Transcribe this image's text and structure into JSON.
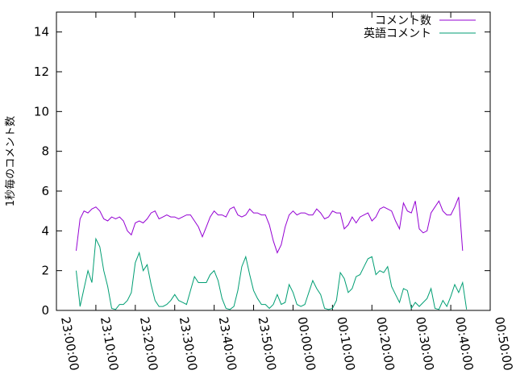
{
  "chart_data": {
    "type": "line",
    "title": "",
    "xlabel": "",
    "ylabel": "1秒毎のコメント数",
    "xlim": [
      "23:00:00",
      "00:50:00"
    ],
    "ylim": [
      0,
      15
    ],
    "x_ticks": [
      "23:00:00",
      "23:10:00",
      "23:20:00",
      "23:30:00",
      "23:40:00",
      "23:50:00",
      "00:00:00",
      "00:10:00",
      "00:20:00",
      "00:30:00",
      "00:40:00",
      "00:50:00"
    ],
    "y_ticks": [
      0,
      2,
      4,
      6,
      8,
      10,
      12,
      14
    ],
    "grid": false,
    "legend": "top-right",
    "series": [
      {
        "name": "コメント数",
        "color": "#9400d3",
        "points": [
          [
            "23:05:00",
            3.0
          ],
          [
            "23:06:00",
            4.6
          ],
          [
            "23:07:00",
            5.0
          ],
          [
            "23:08:00",
            4.9
          ],
          [
            "23:09:00",
            5.1
          ],
          [
            "23:10:00",
            5.2
          ],
          [
            "23:11:00",
            5.0
          ],
          [
            "23:12:00",
            4.6
          ],
          [
            "23:13:00",
            4.5
          ],
          [
            "23:14:00",
            4.7
          ],
          [
            "23:15:00",
            4.6
          ],
          [
            "23:16:00",
            4.7
          ],
          [
            "23:17:00",
            4.5
          ],
          [
            "23:18:00",
            4.0
          ],
          [
            "23:19:00",
            3.8
          ],
          [
            "23:20:00",
            4.4
          ],
          [
            "23:21:00",
            4.5
          ],
          [
            "23:22:00",
            4.4
          ],
          [
            "23:23:00",
            4.6
          ],
          [
            "23:24:00",
            4.9
          ],
          [
            "23:25:00",
            5.0
          ],
          [
            "23:26:00",
            4.6
          ],
          [
            "23:27:00",
            4.7
          ],
          [
            "23:28:00",
            4.8
          ],
          [
            "23:29:00",
            4.7
          ],
          [
            "23:30:00",
            4.7
          ],
          [
            "23:31:00",
            4.6
          ],
          [
            "23:32:00",
            4.7
          ],
          [
            "23:33:00",
            4.8
          ],
          [
            "23:34:00",
            4.8
          ],
          [
            "23:35:00",
            4.5
          ],
          [
            "23:36:00",
            4.2
          ],
          [
            "23:37:00",
            3.7
          ],
          [
            "23:38:00",
            4.2
          ],
          [
            "23:39:00",
            4.7
          ],
          [
            "23:40:00",
            5.0
          ],
          [
            "23:41:00",
            4.8
          ],
          [
            "23:42:00",
            4.8
          ],
          [
            "23:43:00",
            4.7
          ],
          [
            "23:44:00",
            5.1
          ],
          [
            "23:45:00",
            5.2
          ],
          [
            "23:46:00",
            4.8
          ],
          [
            "23:47:00",
            4.7
          ],
          [
            "23:48:00",
            4.8
          ],
          [
            "23:49:00",
            5.1
          ],
          [
            "23:50:00",
            4.9
          ],
          [
            "23:51:00",
            4.9
          ],
          [
            "23:52:00",
            4.8
          ],
          [
            "23:53:00",
            4.8
          ],
          [
            "23:54:00",
            4.3
          ],
          [
            "23:55:00",
            3.5
          ],
          [
            "23:56:00",
            2.9
          ],
          [
            "23:57:00",
            3.3
          ],
          [
            "23:58:00",
            4.2
          ],
          [
            "23:59:00",
            4.8
          ],
          [
            "00:00:00",
            5.0
          ],
          [
            "00:01:00",
            4.8
          ],
          [
            "00:02:00",
            4.9
          ],
          [
            "00:03:00",
            4.9
          ],
          [
            "00:04:00",
            4.8
          ],
          [
            "00:05:00",
            4.8
          ],
          [
            "00:06:00",
            5.1
          ],
          [
            "00:07:00",
            4.9
          ],
          [
            "00:08:00",
            4.6
          ],
          [
            "00:09:00",
            4.7
          ],
          [
            "00:10:00",
            5.0
          ],
          [
            "00:11:00",
            4.9
          ],
          [
            "00:12:00",
            4.9
          ],
          [
            "00:13:00",
            4.1
          ],
          [
            "00:14:00",
            4.3
          ],
          [
            "00:15:00",
            4.7
          ],
          [
            "00:16:00",
            4.4
          ],
          [
            "00:17:00",
            4.7
          ],
          [
            "00:18:00",
            4.8
          ],
          [
            "00:19:00",
            4.9
          ],
          [
            "00:20:00",
            4.5
          ],
          [
            "00:21:00",
            4.7
          ],
          [
            "00:22:00",
            5.1
          ],
          [
            "00:23:00",
            5.2
          ],
          [
            "00:24:00",
            5.1
          ],
          [
            "00:25:00",
            5.0
          ],
          [
            "00:26:00",
            4.5
          ],
          [
            "00:27:00",
            4.1
          ],
          [
            "00:28:00",
            5.4
          ],
          [
            "00:29:00",
            5.0
          ],
          [
            "00:30:00",
            4.9
          ],
          [
            "00:31:00",
            5.5
          ],
          [
            "00:32:00",
            4.1
          ],
          [
            "00:33:00",
            3.9
          ],
          [
            "00:34:00",
            4.0
          ],
          [
            "00:35:00",
            4.9
          ],
          [
            "00:36:00",
            5.2
          ],
          [
            "00:37:00",
            5.5
          ],
          [
            "00:38:00",
            5.0
          ],
          [
            "00:39:00",
            4.8
          ],
          [
            "00:40:00",
            4.8
          ],
          [
            "00:41:00",
            5.2
          ],
          [
            "00:42:00",
            5.7
          ],
          [
            "00:43:00",
            3.0
          ]
        ]
      },
      {
        "name": "英語コメント",
        "color": "#009e73",
        "points": [
          [
            "23:05:00",
            2.0
          ],
          [
            "23:06:00",
            0.2
          ],
          [
            "23:07:00",
            1.1
          ],
          [
            "23:08:00",
            2.0
          ],
          [
            "23:09:00",
            1.4
          ],
          [
            "23:10:00",
            3.6
          ],
          [
            "23:11:00",
            3.2
          ],
          [
            "23:12:00",
            2.0
          ],
          [
            "23:13:00",
            1.2
          ],
          [
            "23:14:00",
            0.1
          ],
          [
            "23:15:00",
            0.05
          ],
          [
            "23:16:00",
            0.3
          ],
          [
            "23:17:00",
            0.3
          ],
          [
            "23:18:00",
            0.5
          ],
          [
            "23:19:00",
            0.9
          ],
          [
            "23:20:00",
            2.4
          ],
          [
            "23:21:00",
            2.9
          ],
          [
            "23:22:00",
            2.0
          ],
          [
            "23:23:00",
            2.3
          ],
          [
            "23:24:00",
            1.3
          ],
          [
            "23:25:00",
            0.5
          ],
          [
            "23:26:00",
            0.2
          ],
          [
            "23:27:00",
            0.2
          ],
          [
            "23:28:00",
            0.3
          ],
          [
            "23:29:00",
            0.5
          ],
          [
            "23:30:00",
            0.8
          ],
          [
            "23:31:00",
            0.5
          ],
          [
            "23:32:00",
            0.4
          ],
          [
            "23:33:00",
            0.3
          ],
          [
            "23:34:00",
            1.0
          ],
          [
            "23:35:00",
            1.7
          ],
          [
            "23:36:00",
            1.4
          ],
          [
            "23:37:00",
            1.4
          ],
          [
            "23:38:00",
            1.4
          ],
          [
            "23:39:00",
            1.8
          ],
          [
            "23:40:00",
            2.0
          ],
          [
            "23:41:00",
            1.5
          ],
          [
            "23:42:00",
            0.6
          ],
          [
            "23:43:00",
            0.1
          ],
          [
            "23:44:00",
            0.05
          ],
          [
            "23:45:00",
            0.2
          ],
          [
            "23:46:00",
            1.0
          ],
          [
            "23:47:00",
            2.2
          ],
          [
            "23:48:00",
            2.7
          ],
          [
            "23:49:00",
            1.8
          ],
          [
            "23:50:00",
            1.0
          ],
          [
            "23:51:00",
            0.6
          ],
          [
            "23:52:00",
            0.3
          ],
          [
            "23:53:00",
            0.3
          ],
          [
            "23:54:00",
            0.1
          ],
          [
            "23:55:00",
            0.3
          ],
          [
            "23:56:00",
            0.8
          ],
          [
            "23:57:00",
            0.3
          ],
          [
            "23:58:00",
            0.4
          ],
          [
            "23:59:00",
            1.3
          ],
          [
            "00:00:00",
            0.9
          ],
          [
            "00:01:00",
            0.3
          ],
          [
            "00:02:00",
            0.2
          ],
          [
            "00:03:00",
            0.3
          ],
          [
            "00:04:00",
            0.9
          ],
          [
            "00:05:00",
            1.5
          ],
          [
            "00:06:00",
            1.1
          ],
          [
            "00:07:00",
            0.8
          ],
          [
            "00:08:00",
            0.1
          ],
          [
            "00:09:00",
            0.05
          ],
          [
            "00:10:00",
            0.1
          ],
          [
            "00:11:00",
            0.5
          ],
          [
            "00:12:00",
            1.9
          ],
          [
            "00:13:00",
            1.6
          ],
          [
            "00:14:00",
            0.9
          ],
          [
            "00:15:00",
            1.1
          ],
          [
            "00:16:00",
            1.7
          ],
          [
            "00:17:00",
            1.8
          ],
          [
            "00:18:00",
            2.2
          ],
          [
            "00:19:00",
            2.6
          ],
          [
            "00:20:00",
            2.7
          ],
          [
            "00:21:00",
            1.8
          ],
          [
            "00:22:00",
            2.0
          ],
          [
            "00:23:00",
            1.9
          ],
          [
            "00:24:00",
            2.2
          ],
          [
            "00:25:00",
            1.2
          ],
          [
            "00:26:00",
            0.8
          ],
          [
            "00:27:00",
            0.4
          ],
          [
            "00:28:00",
            1.1
          ],
          [
            "00:29:00",
            1.0
          ],
          [
            "00:30:00",
            0.1
          ],
          [
            "00:31:00",
            0.4
          ],
          [
            "00:32:00",
            0.2
          ],
          [
            "00:33:00",
            0.4
          ],
          [
            "00:34:00",
            0.6
          ],
          [
            "00:35:00",
            1.1
          ],
          [
            "00:36:00",
            0.1
          ],
          [
            "00:37:00",
            0.05
          ],
          [
            "00:38:00",
            0.5
          ],
          [
            "00:39:00",
            0.2
          ],
          [
            "00:40:00",
            0.7
          ],
          [
            "00:41:00",
            1.3
          ],
          [
            "00:42:00",
            0.9
          ],
          [
            "00:43:00",
            1.4
          ],
          [
            "00:44:00",
            0.05
          ]
        ]
      }
    ]
  }
}
